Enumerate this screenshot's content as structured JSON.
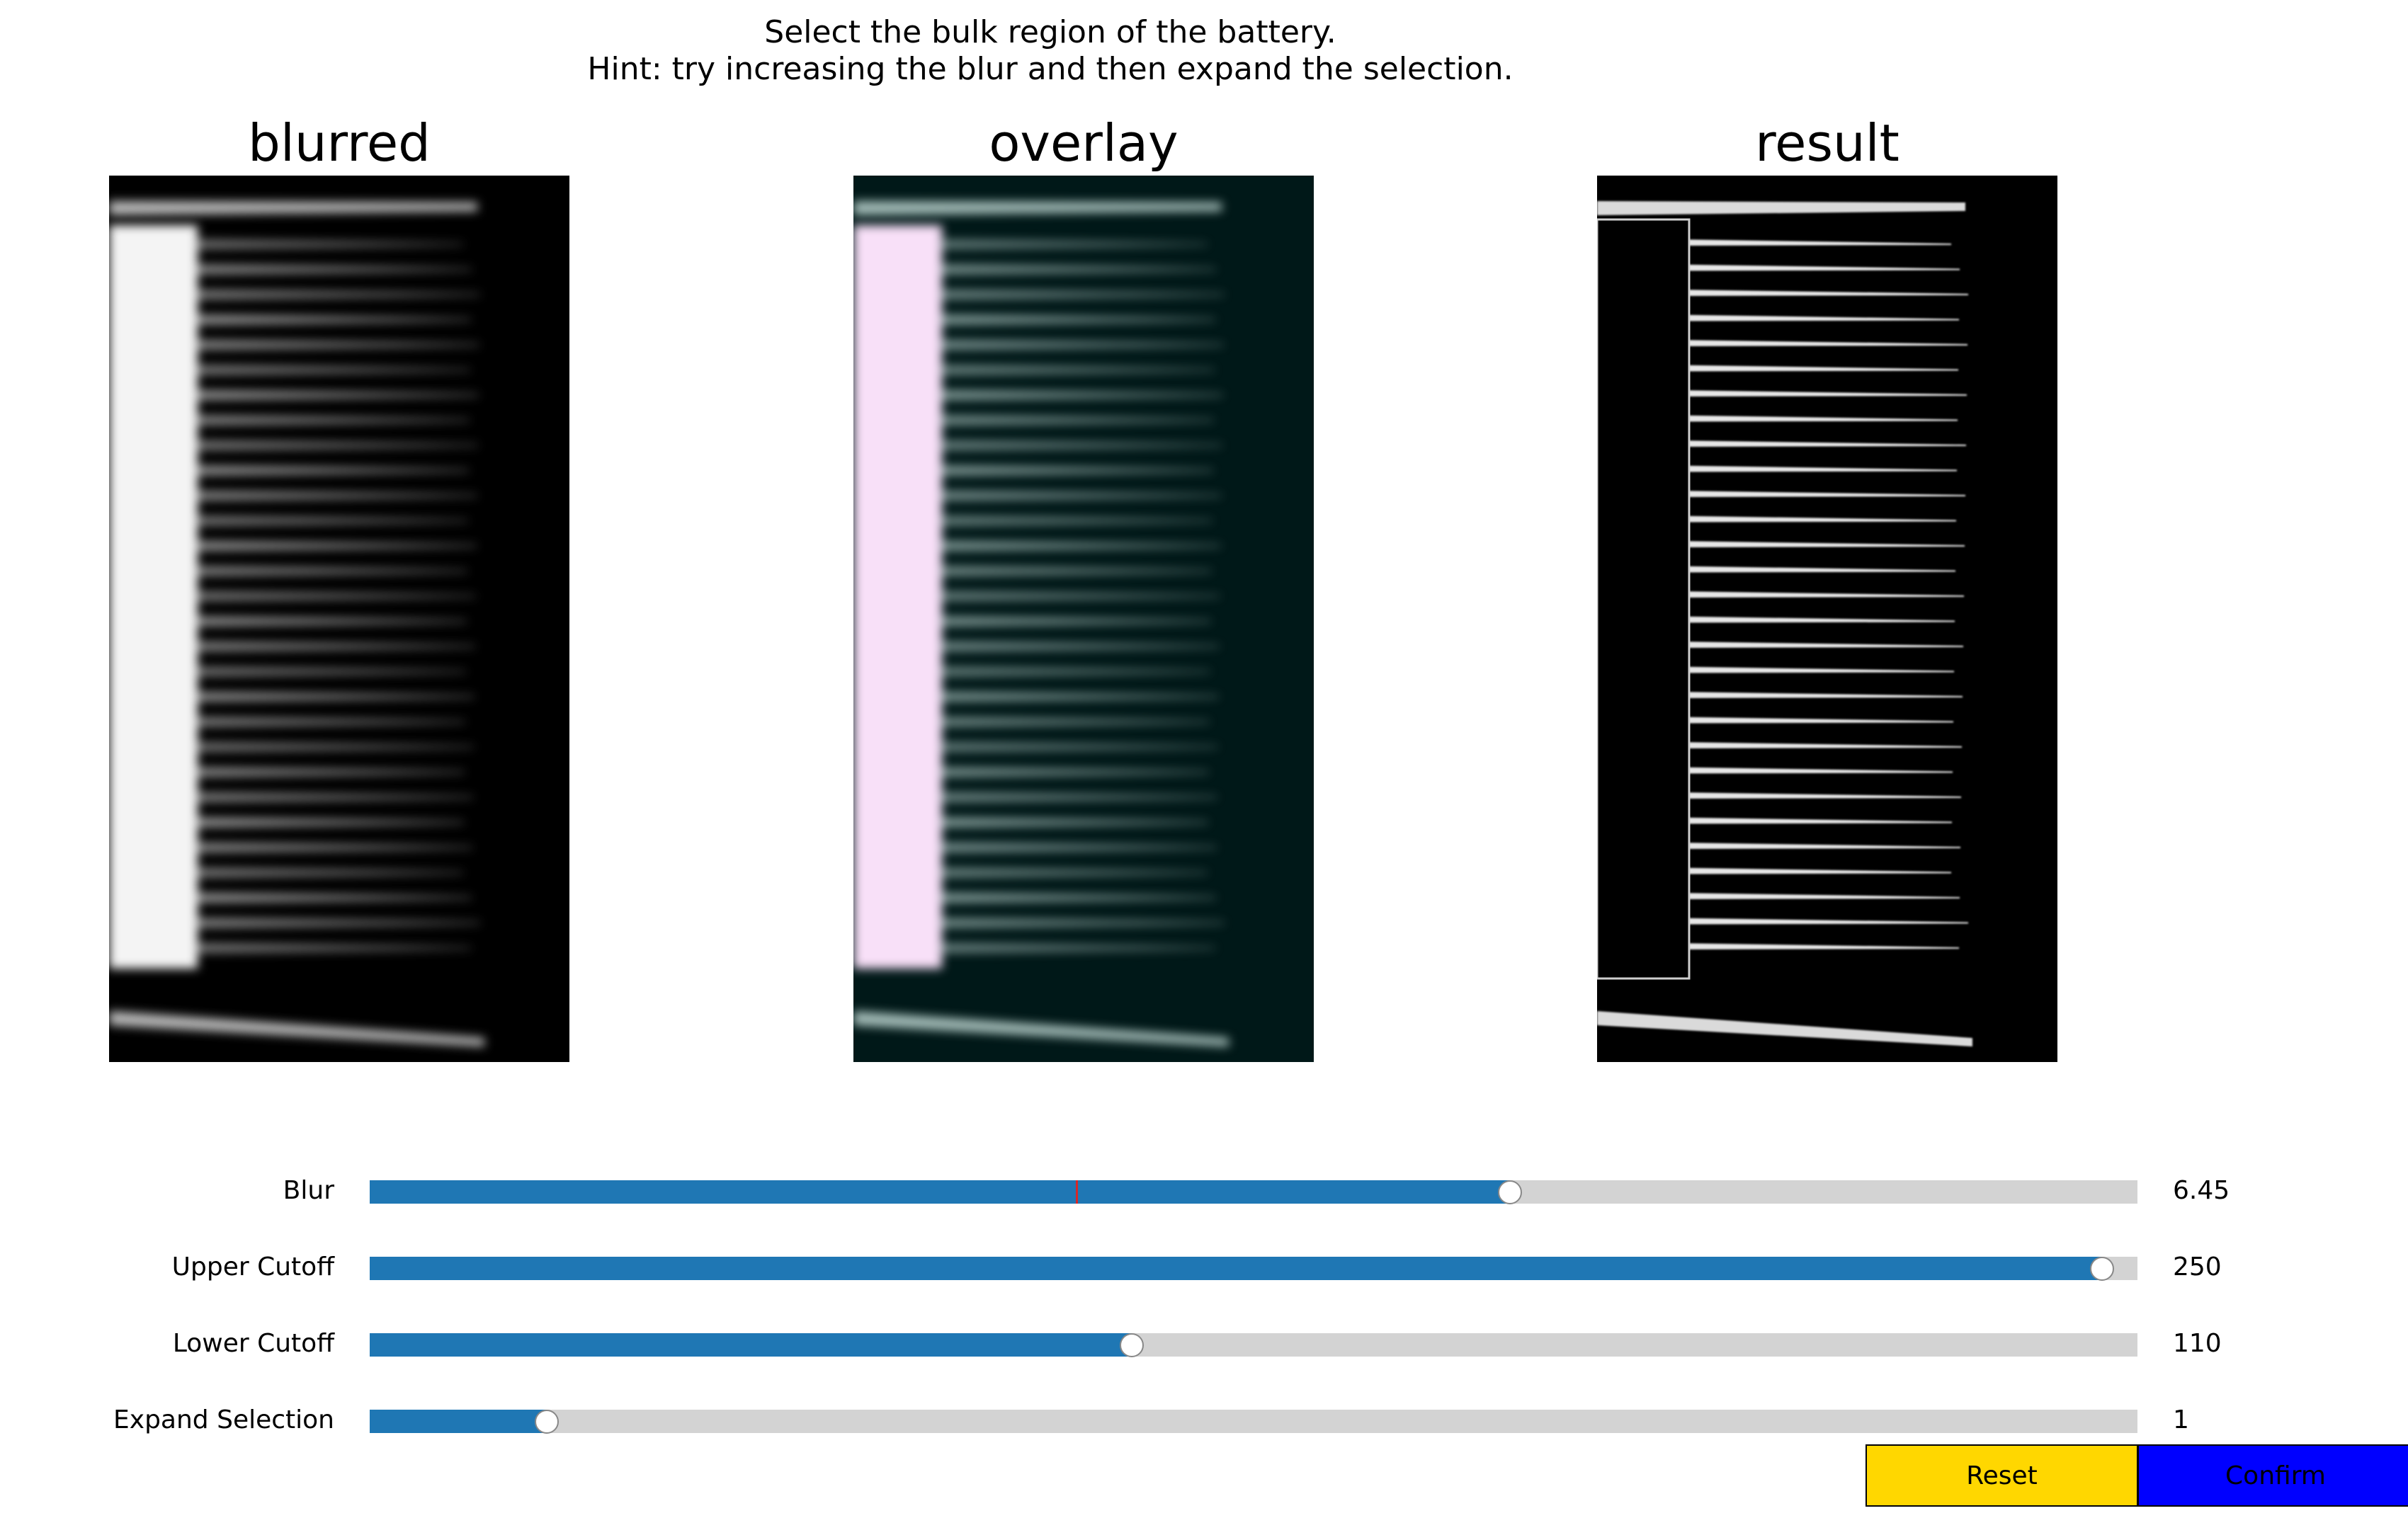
{
  "instructions": {
    "line1": "Select the bulk region of the battery.",
    "line2": "Hint: try increasing the blur and then expand the selection."
  },
  "panels": [
    {
      "title": "blurred"
    },
    {
      "title": "overlay"
    },
    {
      "title": "result"
    }
  ],
  "sliders": [
    {
      "label": "Blur",
      "value": "6.45",
      "fraction": 0.645,
      "initial_fraction": 0.4
    },
    {
      "label": "Upper Cutoff",
      "value": "250",
      "fraction": 0.98
    },
    {
      "label": "Lower Cutoff",
      "value": "110",
      "fraction": 0.431
    },
    {
      "label": "Expand Selection",
      "value": "1",
      "fraction": 0.1
    }
  ],
  "buttons": {
    "reset": {
      "label": "Reset",
      "color": "#ffd700"
    },
    "confirm": {
      "label": "Confirm",
      "color": "#0000ff"
    }
  },
  "colors": {
    "slider_fill": "#1f77b4",
    "slider_track": "#d3d3d3",
    "initial_marker": "#d62728",
    "overlay_selection": "#f8e0f8",
    "overlay_background": "#001818"
  }
}
